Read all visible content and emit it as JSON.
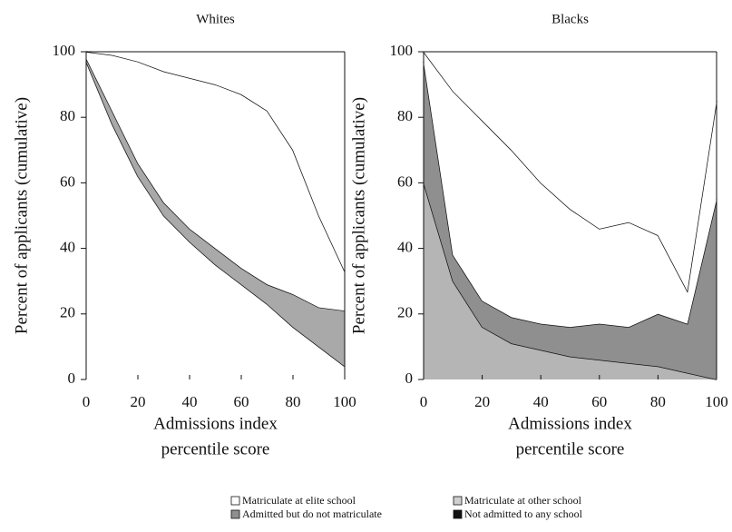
{
  "chart_data": [
    {
      "type": "stacked-area",
      "title": "Whites",
      "x_label": [
        "Admissions index",
        "percentile score"
      ],
      "y_label": "Percent of applicants (cumulative)",
      "x": [
        0,
        10,
        20,
        30,
        40,
        50,
        60,
        70,
        80,
        90,
        100
      ],
      "xlim": [
        0,
        100
      ],
      "xticks": [
        0,
        20,
        40,
        60,
        80,
        100
      ],
      "ylim": [
        0,
        100
      ],
      "yticks": [
        0,
        20,
        40,
        60,
        80,
        100
      ],
      "series": [
        {
          "color": "#ffffff",
          "values": [
            97,
            78,
            62,
            50,
            42,
            35,
            29,
            23,
            16,
            10,
            4
          ]
        },
        {
          "color": "#a9a9a9",
          "values": [
            1,
            4,
            4,
            4,
            4,
            5,
            5,
            6,
            10,
            12,
            17
          ]
        },
        {
          "color": "#ffffff",
          "values": [
            2,
            17,
            31,
            40,
            46,
            50,
            53,
            53,
            44,
            28,
            12
          ]
        },
        {
          "color": "#ffffff",
          "values": [
            0,
            1,
            3,
            6,
            8,
            10,
            13,
            18,
            30,
            50,
            67
          ]
        }
      ]
    },
    {
      "type": "stacked-area",
      "title": "Blacks",
      "x_label": [
        "Admissions index",
        "percentile score"
      ],
      "y_label": "Percent of applicants (cumulative)",
      "x": [
        0,
        10,
        20,
        30,
        40,
        50,
        60,
        70,
        80,
        90,
        100
      ],
      "xlim": [
        0,
        100
      ],
      "xticks": [
        0,
        20,
        40,
        60,
        80,
        100
      ],
      "ylim": [
        0,
        100
      ],
      "yticks": [
        0,
        20,
        40,
        60,
        80,
        100
      ],
      "series": [
        {
          "color": "#b5b5b5",
          "values": [
            60,
            30,
            16,
            11,
            9,
            7,
            6,
            5,
            4,
            2,
            0
          ]
        },
        {
          "color": "#8f8f8f",
          "values": [
            37,
            8,
            8,
            8,
            8,
            9,
            11,
            11,
            16,
            15,
            55
          ]
        },
        {
          "color": "#ffffff",
          "values": [
            3,
            50,
            55,
            51,
            43,
            36,
            29,
            32,
            24,
            10,
            30
          ]
        },
        {
          "color": "#ffffff",
          "values": [
            0,
            12,
            21,
            30,
            40,
            48,
            54,
            52,
            56,
            73,
            15
          ]
        }
      ]
    }
  ],
  "legend": [
    {
      "name": "Matriculate at elite school",
      "color": "#ffffff"
    },
    {
      "name": "Admitted but do not matriculate",
      "color": "#8f8f8f"
    },
    {
      "name": "Matriculate at other school",
      "color": "#cfcfcf"
    },
    {
      "name": "Not admitted to any school",
      "color": "#111111"
    }
  ]
}
